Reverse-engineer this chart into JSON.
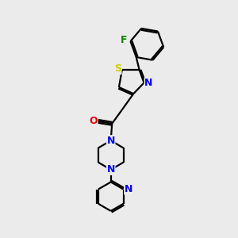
{
  "bg_color": "#ebebeb",
  "bond_color": "#000000",
  "atom_colors": {
    "N": "#0000ee",
    "O": "#ee0000",
    "S": "#cccc00",
    "F": "#008800",
    "C": "#000000"
  },
  "lw": 1.6,
  "fs": 8.5
}
